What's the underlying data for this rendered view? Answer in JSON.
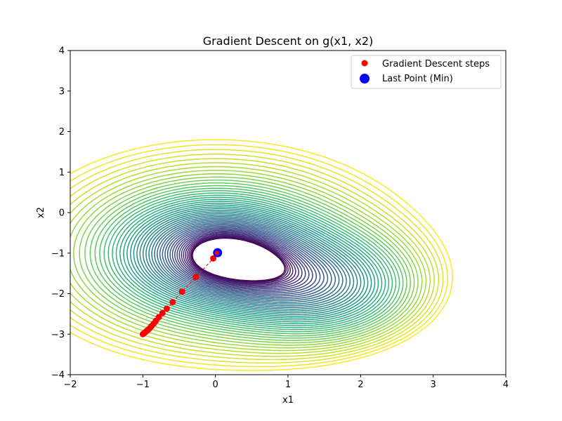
{
  "chart_data": {
    "type": "scatter",
    "title": "Gradient Descent on g(x1, x2)",
    "xlabel": "x1",
    "ylabel": "x2",
    "xlim": [
      -2,
      4
    ],
    "ylim": [
      -4,
      4
    ],
    "xticks": [
      -2,
      -1,
      0,
      1,
      2,
      3,
      4
    ],
    "yticks": [
      -4,
      -3,
      -2,
      -1,
      0,
      1,
      2,
      3,
      4
    ],
    "xtick_labels": [
      "−2",
      "−1",
      "0",
      "1",
      "2",
      "3",
      "4"
    ],
    "ytick_labels": [
      "−4",
      "−3",
      "−2",
      "−1",
      "0",
      "1",
      "2",
      "3",
      "4"
    ],
    "grid": false,
    "legend_position": "top-right",
    "background": "contour plot of g(x1, x2) with viridis colormap; global minimum near (0, -1), second basin near (1.7, -1.95)",
    "series": [
      {
        "name": "Gradient Descent steps",
        "color": "#ff0000",
        "marker": "circle",
        "connected": true,
        "line_style": "dashed",
        "x": [
          -1.0,
          -0.98,
          -0.96,
          -0.94,
          -0.92,
          -0.9,
          -0.88,
          -0.85,
          -0.82,
          -0.78,
          -0.73,
          -0.67,
          -0.59,
          -0.46,
          -0.27,
          -0.03,
          0.02
        ],
        "y": [
          -3.0,
          -2.97,
          -2.94,
          -2.91,
          -2.88,
          -2.84,
          -2.8,
          -2.74,
          -2.67,
          -2.58,
          -2.48,
          -2.37,
          -2.21,
          -1.95,
          -1.59,
          -1.13,
          -1.0
        ]
      },
      {
        "name": "Last Point (Min)",
        "color": "#0000ff",
        "marker": "circle",
        "x": [
          0.03
        ],
        "y": [
          -0.99
        ]
      }
    ]
  }
}
